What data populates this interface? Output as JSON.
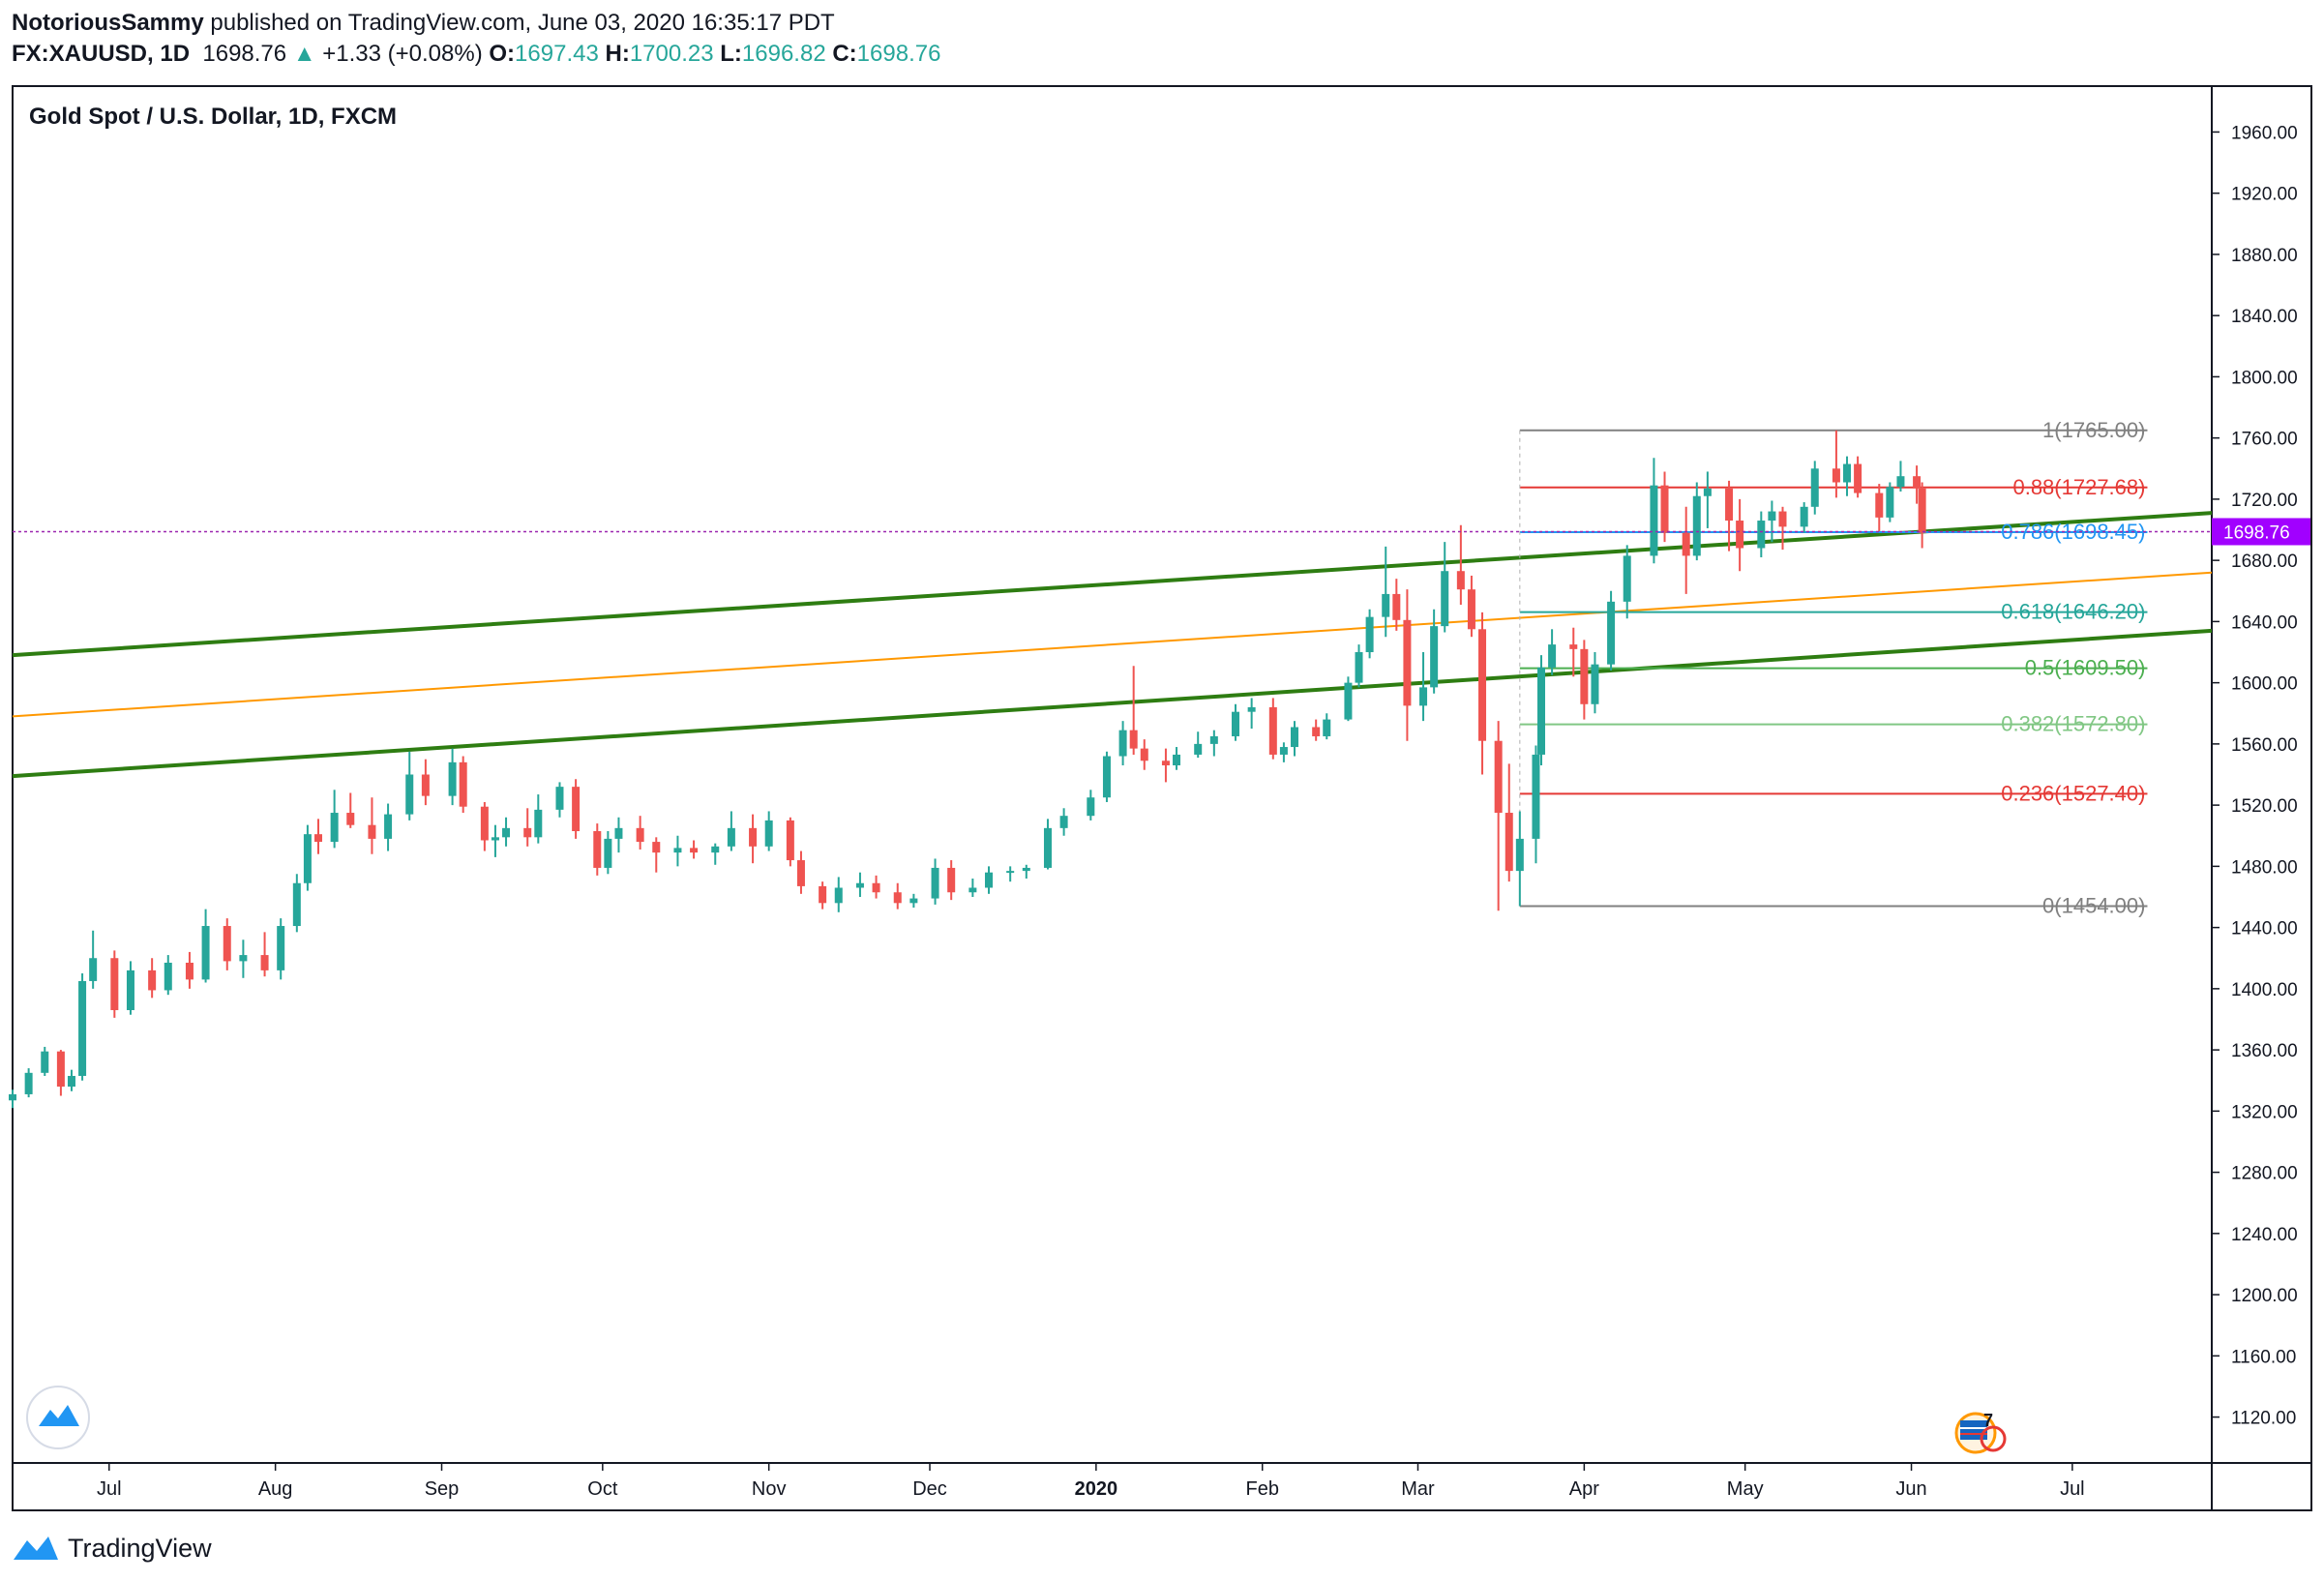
{
  "header": {
    "author": "NotoriousSammy",
    "published_text": "published on TradingView.com, June 03, 2020 16:35:17 PDT",
    "symbol": "FX:XAUUSD, 1D",
    "last": "1698.76",
    "change": "+1.33 (+0.08%)",
    "o_label": "O:",
    "o": "1697.43",
    "h_label": "H:",
    "h": "1700.23",
    "l_label": "L:",
    "l": "1696.82",
    "c_label": "C:",
    "c": "1698.76"
  },
  "footer": {
    "brand": "TradingView"
  },
  "badge_count": "7",
  "chart_data": {
    "type": "candlestick",
    "title": "Gold Spot / U.S. Dollar, 1D, FXCM",
    "ylim": [
      1090,
      1990
    ],
    "y_ticks": [
      "1960.00",
      "1920.00",
      "1880.00",
      "1840.00",
      "1800.00",
      "1760.00",
      "1720.00",
      "1680.00",
      "1640.00",
      "1600.00",
      "1560.00",
      "1520.00",
      "1480.00",
      "1440.00",
      "1400.00",
      "1360.00",
      "1320.00",
      "1280.00",
      "1240.00",
      "1200.00",
      "1160.00",
      "1120.00"
    ],
    "x_labels": [
      "Jul",
      "Aug",
      "Sep",
      "Oct",
      "Nov",
      "Dec",
      "2020",
      "Feb",
      "Mar",
      "Apr",
      "May",
      "Jun",
      "Jul"
    ],
    "x_start": "2019-06-13",
    "x_end": "2020-07-27",
    "last_price": 1698.76,
    "last_price_label": "1698.76",
    "trendlines": [
      {
        "name": "upper-channel",
        "color": "#2e7d12",
        "width": 4,
        "p1": [
          "2019-06-13",
          1618
        ],
        "p2": [
          "2020-07-27",
          1711
        ]
      },
      {
        "name": "median-line",
        "color": "#ff9800",
        "width": 2,
        "p1": [
          "2019-06-13",
          1578
        ],
        "p2": [
          "2020-07-27",
          1672
        ]
      },
      {
        "name": "lower-channel",
        "color": "#2e7d12",
        "width": 4,
        "p1": [
          "2019-06-13",
          1539
        ],
        "p2": [
          "2020-07-27",
          1634
        ]
      }
    ],
    "fib_start": "2020-03-20",
    "fib_end": "2020-07-15",
    "fib_levels": [
      {
        "ratio": "1",
        "price": 1765.0,
        "label": "1(1765.00)",
        "color": "#808080"
      },
      {
        "ratio": "0.88",
        "price": 1727.68,
        "label": "0.88(1727.68)",
        "color": "#e53935"
      },
      {
        "ratio": "0.786",
        "price": 1698.45,
        "label": "0.786(1698.45)",
        "color": "#2196f3"
      },
      {
        "ratio": "0.618",
        "price": 1646.2,
        "label": "0.618(1646.20)",
        "color": "#26a69a"
      },
      {
        "ratio": "0.5",
        "price": 1609.5,
        "label": "0.5(1609.50)",
        "color": "#4caf50"
      },
      {
        "ratio": "0.382",
        "price": 1572.8,
        "label": "0.382(1572.80)",
        "color": "#81c784"
      },
      {
        "ratio": "0.236",
        "price": 1527.4,
        "label": "0.236(1527.40)",
        "color": "#e53935"
      },
      {
        "ratio": "0",
        "price": 1454.0,
        "label": "0(1454.00)",
        "color": "#808080"
      }
    ],
    "candles": [
      [
        "2019-06-13",
        1327,
        1334,
        1322,
        1331
      ],
      [
        "2019-06-16",
        1331,
        1348,
        1329,
        1345
      ],
      [
        "2019-06-19",
        1345,
        1362,
        1343,
        1359
      ],
      [
        "2019-06-22",
        1359,
        1360,
        1330,
        1336
      ],
      [
        "2019-06-24",
        1336,
        1347,
        1333,
        1343
      ],
      [
        "2019-06-26",
        1343,
        1410,
        1340,
        1405
      ],
      [
        "2019-06-28",
        1405,
        1438,
        1400,
        1420
      ],
      [
        "2019-07-02",
        1420,
        1425,
        1381,
        1386
      ],
      [
        "2019-07-05",
        1386,
        1418,
        1383,
        1412
      ],
      [
        "2019-07-09",
        1412,
        1420,
        1394,
        1399
      ],
      [
        "2019-07-12",
        1399,
        1422,
        1396,
        1417
      ],
      [
        "2019-07-16",
        1417,
        1424,
        1400,
        1406
      ],
      [
        "2019-07-19",
        1406,
        1452,
        1404,
        1441
      ],
      [
        "2019-07-23",
        1441,
        1446,
        1412,
        1418
      ],
      [
        "2019-07-26",
        1418,
        1432,
        1407,
        1422
      ],
      [
        "2019-07-30",
        1422,
        1437,
        1408,
        1412
      ],
      [
        "2019-08-02",
        1412,
        1446,
        1406,
        1441
      ],
      [
        "2019-08-05",
        1441,
        1475,
        1437,
        1469
      ],
      [
        "2019-08-07",
        1469,
        1507,
        1464,
        1501
      ],
      [
        "2019-08-09",
        1501,
        1511,
        1488,
        1496
      ],
      [
        "2019-08-12",
        1496,
        1530,
        1492,
        1515
      ],
      [
        "2019-08-15",
        1515,
        1528,
        1505,
        1507
      ],
      [
        "2019-08-19",
        1507,
        1525,
        1488,
        1498
      ],
      [
        "2019-08-22",
        1498,
        1521,
        1490,
        1514
      ],
      [
        "2019-08-26",
        1514,
        1555,
        1510,
        1540
      ],
      [
        "2019-08-29",
        1540,
        1550,
        1520,
        1526
      ],
      [
        "2019-09-03",
        1526,
        1557,
        1520,
        1548
      ],
      [
        "2019-09-05",
        1548,
        1552,
        1515,
        1519
      ],
      [
        "2019-09-09",
        1519,
        1522,
        1490,
        1497
      ],
      [
        "2019-09-11",
        1497,
        1507,
        1486,
        1499
      ],
      [
        "2019-09-13",
        1499,
        1512,
        1493,
        1505
      ],
      [
        "2019-09-17",
        1505,
        1518,
        1493,
        1499
      ],
      [
        "2019-09-19",
        1499,
        1527,
        1495,
        1517
      ],
      [
        "2019-09-23",
        1517,
        1535,
        1512,
        1532
      ],
      [
        "2019-09-26",
        1532,
        1537,
        1498,
        1503
      ],
      [
        "2019-09-30",
        1503,
        1508,
        1474,
        1479
      ],
      [
        "2019-10-02",
        1479,
        1503,
        1475,
        1498
      ],
      [
        "2019-10-04",
        1498,
        1512,
        1489,
        1505
      ],
      [
        "2019-10-08",
        1505,
        1513,
        1491,
        1496
      ],
      [
        "2019-10-11",
        1496,
        1499,
        1476,
        1489
      ],
      [
        "2019-10-15",
        1489,
        1500,
        1480,
        1492
      ],
      [
        "2019-10-18",
        1492,
        1497,
        1485,
        1489
      ],
      [
        "2019-10-22",
        1489,
        1495,
        1481,
        1493
      ],
      [
        "2019-10-25",
        1493,
        1516,
        1490,
        1505
      ],
      [
        "2019-10-29",
        1505,
        1514,
        1482,
        1493
      ],
      [
        "2019-11-01",
        1493,
        1516,
        1490,
        1510
      ],
      [
        "2019-11-05",
        1510,
        1512,
        1480,
        1484
      ],
      [
        "2019-11-07",
        1484,
        1490,
        1462,
        1467
      ],
      [
        "2019-11-11",
        1467,
        1470,
        1452,
        1456
      ],
      [
        "2019-11-14",
        1456,
        1473,
        1450,
        1466
      ],
      [
        "2019-11-18",
        1466,
        1476,
        1460,
        1469
      ],
      [
        "2019-11-21",
        1469,
        1474,
        1459,
        1463
      ],
      [
        "2019-11-25",
        1463,
        1469,
        1452,
        1456
      ],
      [
        "2019-11-28",
        1456,
        1462,
        1453,
        1459
      ],
      [
        "2019-12-02",
        1459,
        1485,
        1455,
        1479
      ],
      [
        "2019-12-05",
        1479,
        1484,
        1458,
        1463
      ],
      [
        "2019-12-09",
        1463,
        1472,
        1460,
        1466
      ],
      [
        "2019-12-12",
        1466,
        1480,
        1462,
        1476
      ],
      [
        "2019-12-16",
        1476,
        1480,
        1470,
        1477
      ],
      [
        "2019-12-19",
        1477,
        1481,
        1472,
        1479
      ],
      [
        "2019-12-23",
        1479,
        1511,
        1478,
        1505
      ],
      [
        "2019-12-26",
        1505,
        1518,
        1500,
        1513
      ],
      [
        "2019-12-31",
        1513,
        1530,
        1510,
        1525
      ],
      [
        "2020-01-03",
        1525,
        1555,
        1522,
        1552
      ],
      [
        "2020-01-06",
        1552,
        1575,
        1546,
        1569
      ],
      [
        "2020-01-08",
        1569,
        1611,
        1553,
        1557
      ],
      [
        "2020-01-10",
        1557,
        1563,
        1543,
        1549
      ],
      [
        "2020-01-14",
        1549,
        1557,
        1535,
        1546
      ],
      [
        "2020-01-16",
        1546,
        1558,
        1543,
        1553
      ],
      [
        "2020-01-20",
        1553,
        1568,
        1551,
        1560
      ],
      [
        "2020-01-23",
        1560,
        1569,
        1552,
        1565
      ],
      [
        "2020-01-27",
        1565,
        1586,
        1562,
        1581
      ],
      [
        "2020-01-30",
        1581,
        1590,
        1570,
        1584
      ],
      [
        "2020-02-03",
        1584,
        1590,
        1550,
        1553
      ],
      [
        "2020-02-05",
        1553,
        1561,
        1548,
        1558
      ],
      [
        "2020-02-07",
        1558,
        1575,
        1552,
        1571
      ],
      [
        "2020-02-11",
        1571,
        1576,
        1562,
        1565
      ],
      [
        "2020-02-13",
        1565,
        1580,
        1563,
        1576
      ],
      [
        "2020-02-17",
        1576,
        1604,
        1575,
        1600
      ],
      [
        "2020-02-19",
        1600,
        1625,
        1597,
        1620
      ],
      [
        "2020-02-21",
        1620,
        1648,
        1616,
        1643
      ],
      [
        "2020-02-24",
        1643,
        1689,
        1630,
        1658
      ],
      [
        "2020-02-26",
        1658,
        1668,
        1634,
        1641
      ],
      [
        "2020-02-28",
        1641,
        1661,
        1562,
        1585
      ],
      [
        "2020-03-02",
        1585,
        1620,
        1575,
        1597
      ],
      [
        "2020-03-04",
        1597,
        1648,
        1593,
        1637
      ],
      [
        "2020-03-06",
        1637,
        1692,
        1633,
        1673
      ],
      [
        "2020-03-09",
        1673,
        1703,
        1651,
        1661
      ],
      [
        "2020-03-11",
        1661,
        1670,
        1630,
        1635
      ],
      [
        "2020-03-13",
        1635,
        1646,
        1540,
        1562
      ],
      [
        "2020-03-16",
        1562,
        1575,
        1451,
        1515
      ],
      [
        "2020-03-18",
        1515,
        1547,
        1470,
        1477
      ],
      [
        "2020-03-20",
        1477,
        1516,
        1454,
        1498
      ],
      [
        "2020-03-23",
        1498,
        1559,
        1482,
        1553
      ],
      [
        "2020-03-24",
        1553,
        1618,
        1546,
        1610
      ],
      [
        "2020-03-26",
        1610,
        1635,
        1605,
        1625
      ],
      [
        "2020-03-30",
        1625,
        1636,
        1604,
        1622
      ],
      [
        "2020-04-01",
        1622,
        1628,
        1576,
        1586
      ],
      [
        "2020-04-03",
        1586,
        1620,
        1580,
        1612
      ],
      [
        "2020-04-06",
        1612,
        1660,
        1608,
        1653
      ],
      [
        "2020-04-09",
        1653,
        1690,
        1642,
        1683
      ],
      [
        "2020-04-14",
        1683,
        1747,
        1678,
        1729
      ],
      [
        "2020-04-16",
        1729,
        1738,
        1692,
        1698
      ],
      [
        "2020-04-20",
        1698,
        1715,
        1658,
        1683
      ],
      [
        "2020-04-22",
        1683,
        1731,
        1680,
        1722
      ],
      [
        "2020-04-24",
        1722,
        1738,
        1701,
        1727
      ],
      [
        "2020-04-28",
        1727,
        1732,
        1686,
        1706
      ],
      [
        "2020-04-30",
        1706,
        1720,
        1673,
        1688
      ],
      [
        "2020-05-04",
        1688,
        1712,
        1682,
        1706
      ],
      [
        "2020-05-06",
        1706,
        1719,
        1692,
        1712
      ],
      [
        "2020-05-08",
        1712,
        1715,
        1687,
        1702
      ],
      [
        "2020-05-12",
        1702,
        1718,
        1698,
        1715
      ],
      [
        "2020-05-14",
        1715,
        1745,
        1710,
        1740
      ],
      [
        "2020-05-18",
        1740,
        1765,
        1721,
        1731
      ],
      [
        "2020-05-20",
        1731,
        1748,
        1722,
        1743
      ],
      [
        "2020-05-22",
        1743,
        1748,
        1721,
        1724
      ],
      [
        "2020-05-26",
        1724,
        1730,
        1699,
        1708
      ],
      [
        "2020-05-28",
        1708,
        1731,
        1705,
        1728
      ],
      [
        "2020-05-30",
        1728,
        1745,
        1725,
        1735
      ],
      [
        "2020-06-02",
        1735,
        1742,
        1717,
        1727
      ],
      [
        "2020-06-03",
        1727,
        1731,
        1688,
        1698
      ]
    ]
  }
}
